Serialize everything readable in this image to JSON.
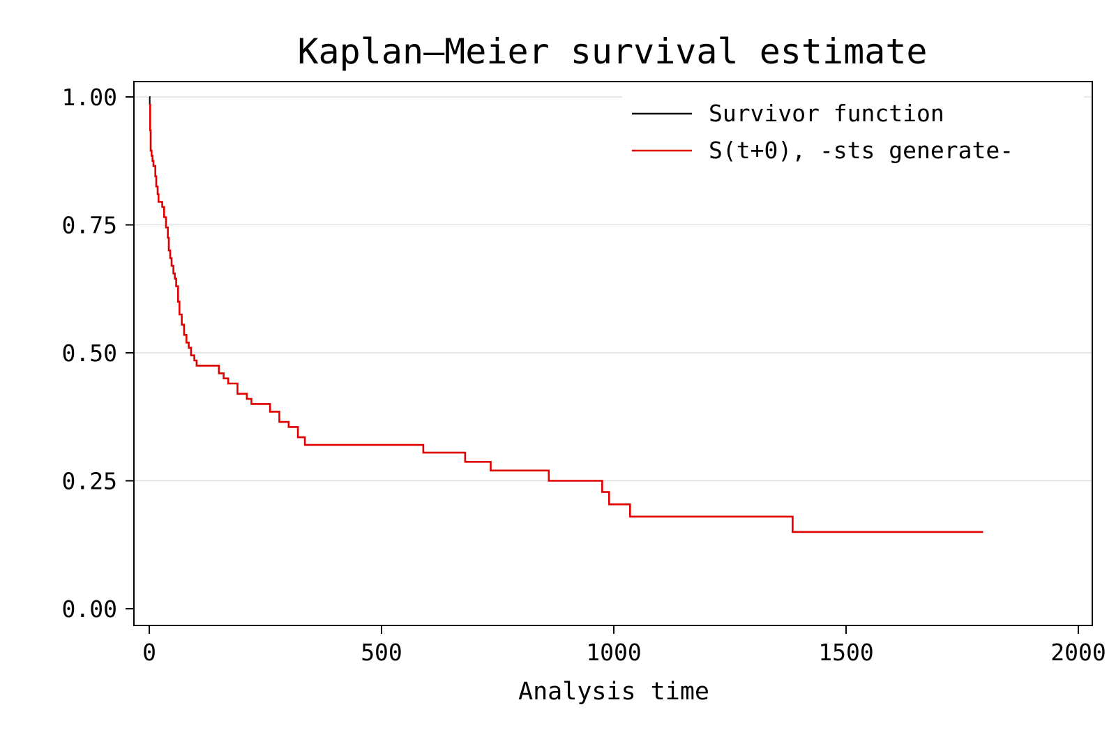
{
  "chart_data": {
    "type": "line",
    "step": true,
    "title": "Kaplan–Meier survival estimate",
    "xlabel": "Analysis time",
    "ylabel": "",
    "xlim": [
      0,
      2000
    ],
    "ylim": [
      0,
      1
    ],
    "x_ticks": [
      "0",
      "500",
      "1000",
      "1500",
      "2000"
    ],
    "y_ticks": [
      "0.00",
      "0.25",
      "0.50",
      "0.75",
      "1.00"
    ],
    "grid": "horizontal",
    "legend": "top-right",
    "series": [
      {
        "name": "Survivor function",
        "color": "#000000",
        "x": [
          0,
          1,
          2,
          3,
          5,
          7,
          9,
          11,
          13,
          15,
          18,
          20,
          24,
          28,
          32,
          36,
          40,
          42,
          45,
          48,
          52,
          55,
          58,
          62,
          65,
          70,
          75,
          80,
          85,
          90,
          97,
          102,
          150,
          160,
          170,
          190,
          210,
          220,
          250,
          260,
          280,
          300,
          320,
          335,
          345,
          580,
          590,
          680,
          735,
          850,
          860,
          975,
          990,
          1030,
          1035,
          1380,
          1385,
          1795
        ],
        "y": [
          1.0,
          0.985,
          0.935,
          0.895,
          0.885,
          0.875,
          0.865,
          0.865,
          0.845,
          0.825,
          0.81,
          0.795,
          0.795,
          0.785,
          0.765,
          0.745,
          0.725,
          0.7,
          0.685,
          0.67,
          0.655,
          0.645,
          0.63,
          0.6,
          0.575,
          0.555,
          0.535,
          0.52,
          0.51,
          0.495,
          0.485,
          0.475,
          0.46,
          0.45,
          0.44,
          0.42,
          0.41,
          0.4,
          0.4,
          0.385,
          0.365,
          0.355,
          0.335,
          0.32,
          0.32,
          0.32,
          0.305,
          0.287,
          0.27,
          0.27,
          0.25,
          0.228,
          0.204,
          0.204,
          0.18,
          0.18,
          0.15,
          0.15
        ]
      },
      {
        "name": "S(t+0), -sts generate-",
        "color": "#e00000",
        "x": [
          0,
          1,
          2,
          3,
          5,
          7,
          9,
          11,
          13,
          15,
          18,
          20,
          24,
          28,
          32,
          36,
          40,
          42,
          45,
          48,
          52,
          55,
          58,
          62,
          65,
          70,
          75,
          80,
          85,
          90,
          97,
          102,
          150,
          160,
          170,
          190,
          210,
          220,
          250,
          260,
          280,
          300,
          320,
          335,
          345,
          580,
          590,
          680,
          735,
          850,
          860,
          975,
          990,
          1030,
          1035,
          1380,
          1385,
          1795
        ],
        "y": [
          0.985,
          0.985,
          0.935,
          0.895,
          0.885,
          0.875,
          0.865,
          0.865,
          0.845,
          0.825,
          0.81,
          0.795,
          0.795,
          0.785,
          0.765,
          0.745,
          0.725,
          0.7,
          0.685,
          0.67,
          0.655,
          0.645,
          0.63,
          0.6,
          0.575,
          0.555,
          0.535,
          0.52,
          0.51,
          0.495,
          0.485,
          0.475,
          0.46,
          0.45,
          0.44,
          0.42,
          0.41,
          0.4,
          0.4,
          0.385,
          0.365,
          0.355,
          0.335,
          0.32,
          0.32,
          0.32,
          0.305,
          0.287,
          0.27,
          0.27,
          0.25,
          0.228,
          0.204,
          0.204,
          0.18,
          0.18,
          0.15,
          0.15
        ]
      }
    ]
  }
}
